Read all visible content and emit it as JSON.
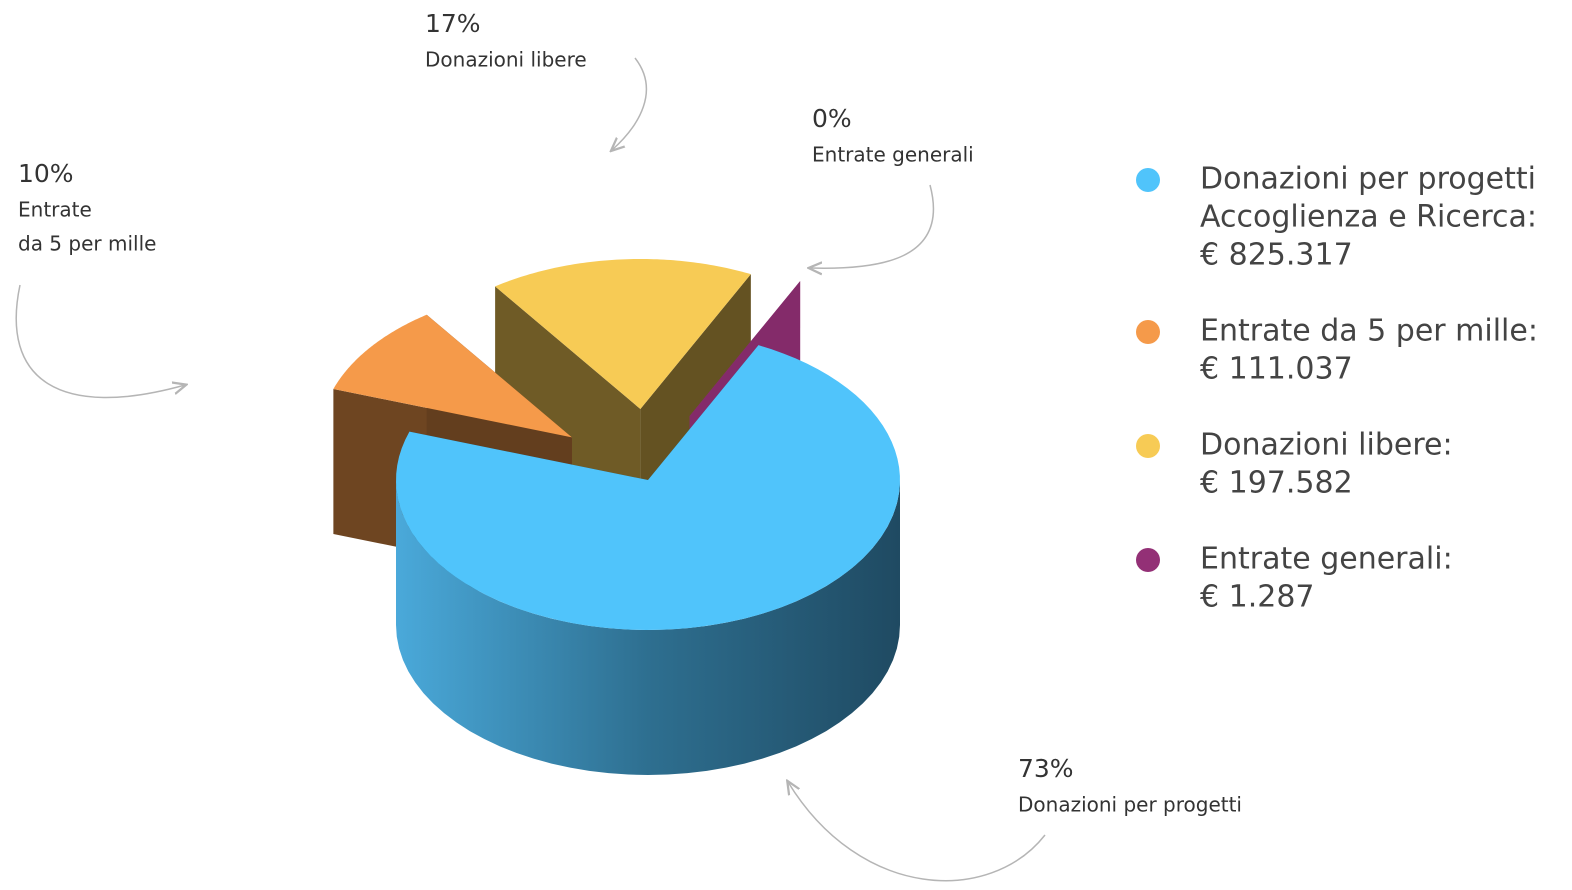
{
  "chart_data": {
    "type": "pie",
    "categories": [
      [
        "Donazioni per progetti"
      ],
      [
        "Entrate",
        "da 5 per mille"
      ],
      [
        "Donazioni libere"
      ],
      [
        "Entrate generali"
      ]
    ],
    "values": [
      73,
      10,
      17,
      0
    ],
    "value_labels": [
      "73%",
      "10%",
      "17%",
      "0%"
    ],
    "colors": [
      "#50c4fb",
      "#f59a4a",
      "#f7cb55",
      "#933076"
    ],
    "legend": [
      {
        "name": [
          "Donazioni per progetti",
          "Accoglienza e Ricerca:"
        ],
        "amount": "€ 825.317"
      },
      {
        "name": [
          "Entrate da 5 per mille:"
        ],
        "amount": "€ 111.037"
      },
      {
        "name": [
          "Donazioni libere:"
        ],
        "amount": "€ 197.582"
      },
      {
        "name": [
          "Entrate generali:"
        ],
        "amount": "€ 1.287"
      }
    ]
  }
}
